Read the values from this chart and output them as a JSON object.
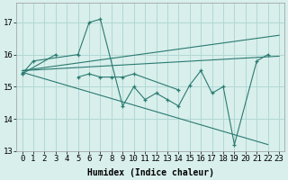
{
  "xlabel": "Humidex (Indice chaleur)",
  "xlim": [
    -0.5,
    23.5
  ],
  "ylim": [
    13,
    17.6
  ],
  "yticks": [
    13,
    14,
    15,
    16,
    17
  ],
  "xticks": [
    0,
    1,
    2,
    3,
    4,
    5,
    6,
    7,
    8,
    9,
    10,
    11,
    12,
    13,
    14,
    15,
    16,
    17,
    18,
    19,
    20,
    21,
    22,
    23
  ],
  "background_color": "#d8efec",
  "grid_color": "#b2d8d4",
  "line_color": "#2a7a70",
  "series1_x": [
    0,
    1,
    5,
    6,
    7,
    9,
    10,
    11,
    12,
    13,
    14,
    15,
    16,
    17,
    18,
    19,
    21,
    22
  ],
  "series1_y": [
    15.4,
    15.8,
    16.0,
    17.0,
    17.1,
    14.4,
    15.0,
    14.6,
    14.8,
    14.6,
    14.4,
    15.05,
    15.5,
    14.8,
    15.0,
    13.2,
    15.8,
    16.0
  ],
  "series2_segments": [
    {
      "x": [
        0,
        3
      ],
      "y": [
        15.4,
        16.0
      ]
    },
    {
      "x": [
        5,
        6,
        7,
        8,
        9,
        10,
        14
      ],
      "y": [
        15.3,
        15.4,
        15.3,
        15.3,
        15.3,
        15.4,
        14.9
      ]
    }
  ],
  "trend_up": {
    "x": [
      0,
      23
    ],
    "y": [
      15.5,
      16.6
    ]
  },
  "trend_down": {
    "x": [
      0,
      22
    ],
    "y": [
      15.45,
      13.2
    ]
  },
  "trend_flat": {
    "x": [
      0,
      23
    ],
    "y": [
      15.5,
      15.95
    ]
  },
  "font_size": 6.5
}
